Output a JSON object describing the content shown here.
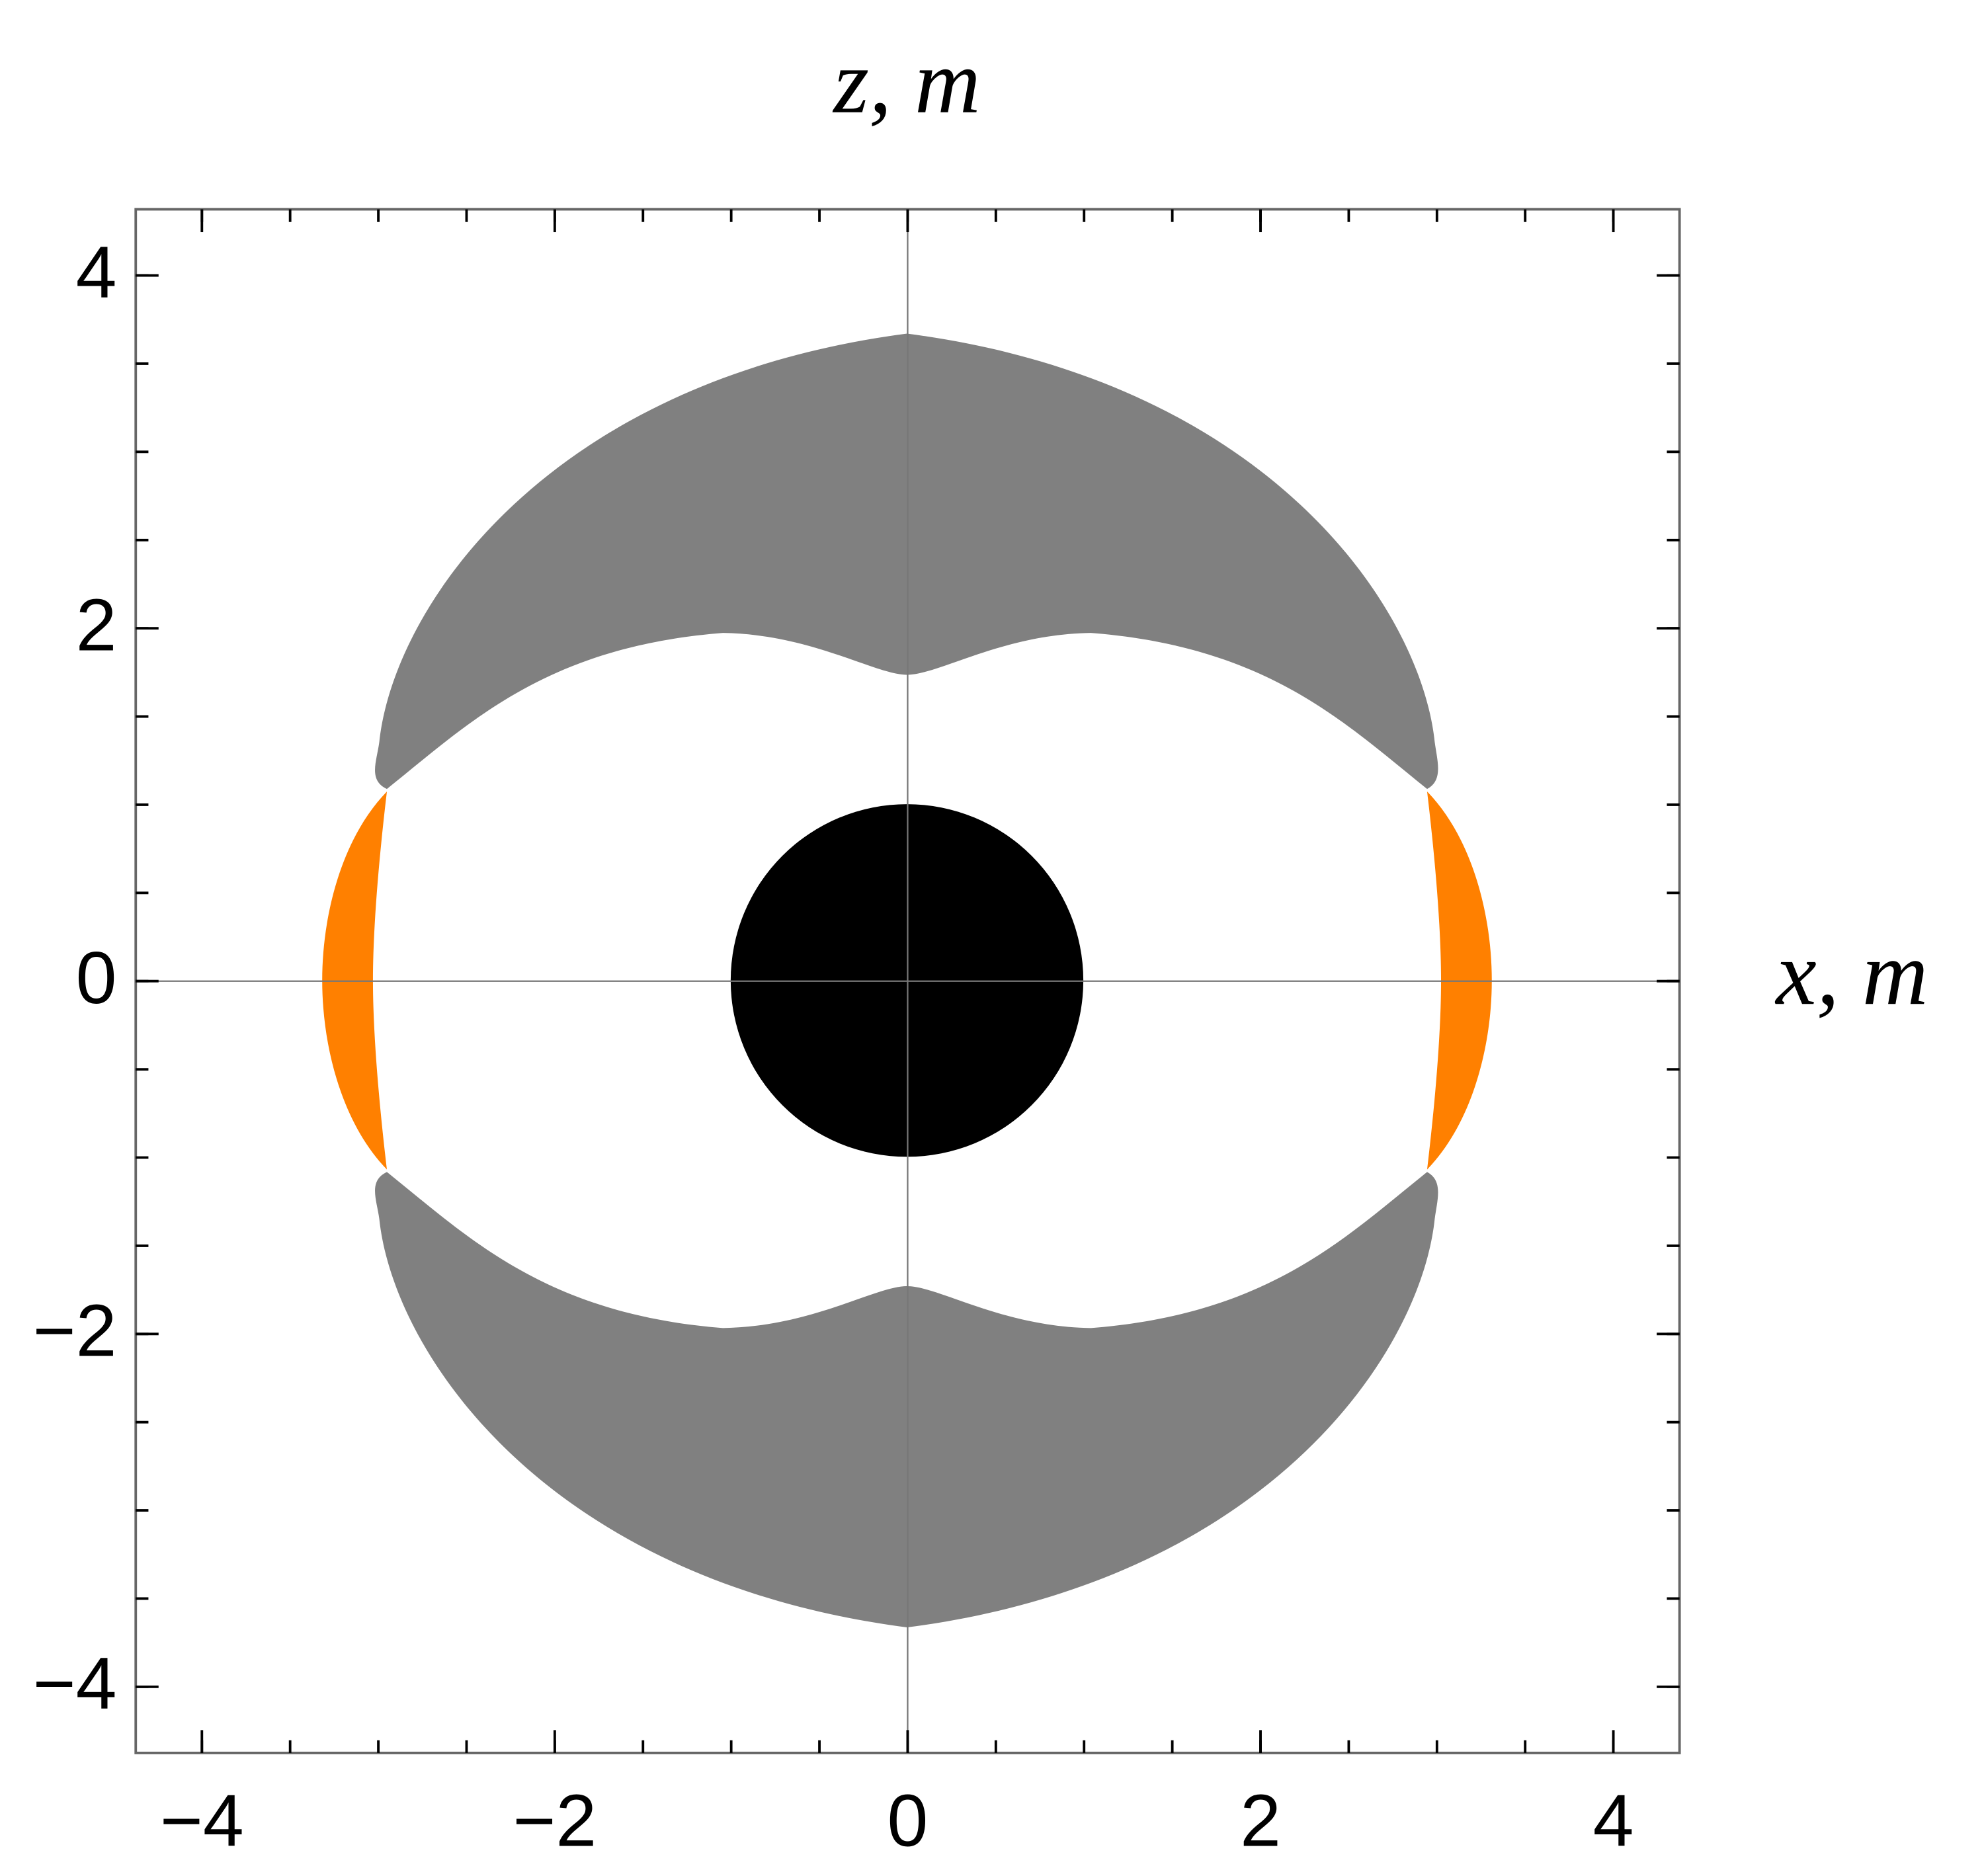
{
  "chart_data": {
    "type": "region",
    "title": "z, m",
    "x_label": "x, m",
    "xlim": [
      -4.375,
      4.375
    ],
    "ylim": [
      -4.375,
      4.375
    ],
    "xticks": [
      {
        "value": -4,
        "label": "−4"
      },
      {
        "value": -2,
        "label": "−2"
      },
      0,
      2,
      4
    ],
    "yticks": [
      {
        "value": -4,
        "label": "−4"
      },
      {
        "value": -2,
        "label": "−2"
      },
      0,
      2,
      4
    ],
    "xminorticks": [
      -4,
      -3.5,
      -3,
      -2.5,
      -2,
      -1.5,
      -1,
      -0.5,
      0,
      0.5,
      1,
      1.5,
      2,
      2.5,
      3,
      3.5,
      4
    ],
    "yminorticks": [
      -4,
      -3.5,
      -3,
      -2.5,
      -2,
      -1.5,
      -1,
      -0.5,
      0,
      0.5,
      1,
      1.5,
      2,
      2.5,
      3,
      3.5,
      4
    ]
  }
}
